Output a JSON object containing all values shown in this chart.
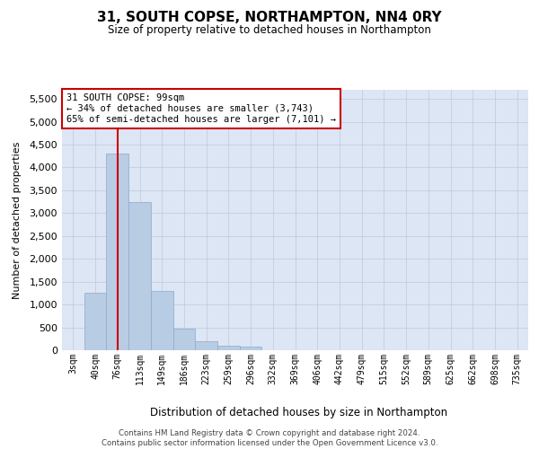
{
  "title": "31, SOUTH COPSE, NORTHAMPTON, NN4 0RY",
  "subtitle": "Size of property relative to detached houses in Northampton",
  "xlabel": "Distribution of detached houses by size in Northampton",
  "ylabel": "Number of detached properties",
  "footer_line1": "Contains HM Land Registry data © Crown copyright and database right 2024.",
  "footer_line2": "Contains public sector information licensed under the Open Government Licence v3.0.",
  "bar_labels": [
    "3sqm",
    "40sqm",
    "76sqm",
    "113sqm",
    "149sqm",
    "186sqm",
    "223sqm",
    "259sqm",
    "296sqm",
    "332sqm",
    "369sqm",
    "406sqm",
    "442sqm",
    "479sqm",
    "515sqm",
    "552sqm",
    "589sqm",
    "625sqm",
    "662sqm",
    "698sqm",
    "735sqm"
  ],
  "bar_values": [
    0,
    1250,
    4300,
    3250,
    1300,
    480,
    200,
    90,
    70,
    0,
    0,
    0,
    0,
    0,
    0,
    0,
    0,
    0,
    0,
    0,
    0
  ],
  "bar_color": "#b8cce4",
  "bar_edge_color": "#8eaacc",
  "ylim": [
    0,
    5700
  ],
  "yticks": [
    0,
    500,
    1000,
    1500,
    2000,
    2500,
    3000,
    3500,
    4000,
    4500,
    5000,
    5500
  ],
  "red_line_index": 2,
  "annotation_line1": "31 SOUTH COPSE: 99sqm",
  "annotation_line2": "← 34% of detached houses are smaller (3,743)",
  "annotation_line3": "65% of semi-detached houses are larger (7,101) →",
  "annotation_box_facecolor": "#ffffff",
  "annotation_box_edgecolor": "#cc0000",
  "bg_color": "#dce6f5",
  "grid_color": "#c0c8d8"
}
